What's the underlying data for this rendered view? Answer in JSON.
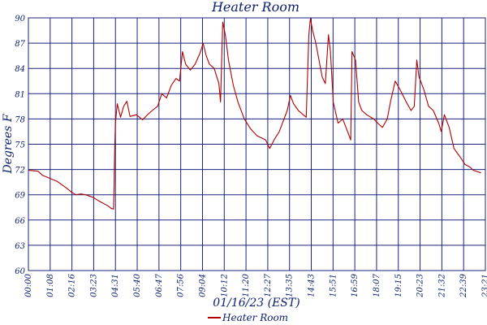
{
  "chart_data": {
    "type": "line",
    "title": "Heater Room",
    "xlabel": "01/16/23 (EST)",
    "ylabel": "Degrees F",
    "ylim": [
      60,
      90
    ],
    "xlim": [
      "00:00",
      "23:59"
    ],
    "grid": true,
    "legend_position": "bottom-center",
    "y_ticks": [
      "60",
      "63",
      "66",
      "69",
      "72",
      "75",
      "78",
      "81",
      "84",
      "87",
      "90"
    ],
    "x_ticks": [
      "00:00",
      "01:08",
      "02:16",
      "03:23",
      "04:31",
      "05:40",
      "06:47",
      "07:56",
      "09:04",
      "10:12",
      "11:20",
      "12:27",
      "13:35",
      "14:43",
      "15:51",
      "16:59",
      "18:07",
      "19:15",
      "20:23",
      "21:32",
      "22:39",
      "23:21"
    ],
    "series": [
      {
        "name": "Heater Room",
        "color": "#b00000",
        "points": [
          [
            "00:00",
            71.9
          ],
          [
            "00:30",
            71.8
          ],
          [
            "00:45",
            71.3
          ],
          [
            "01:30",
            70.6
          ],
          [
            "02:00",
            69.8
          ],
          [
            "02:16",
            69.3
          ],
          [
            "02:30",
            69.0
          ],
          [
            "02:45",
            69.1
          ],
          [
            "03:00",
            69.0
          ],
          [
            "03:23",
            68.7
          ],
          [
            "03:45",
            68.2
          ],
          [
            "04:10",
            67.7
          ],
          [
            "04:20",
            67.4
          ],
          [
            "04:28",
            67.3
          ],
          [
            "04:30",
            70.0
          ],
          [
            "04:31",
            73.0
          ],
          [
            "04:34",
            77.5
          ],
          [
            "04:40",
            79.8
          ],
          [
            "04:50",
            78.2
          ],
          [
            "05:00",
            79.5
          ],
          [
            "05:10",
            80.1
          ],
          [
            "05:20",
            78.3
          ],
          [
            "05:40",
            78.5
          ],
          [
            "06:00",
            77.9
          ],
          [
            "06:15",
            78.5
          ],
          [
            "06:30",
            79.0
          ],
          [
            "06:47",
            79.5
          ],
          [
            "07:00",
            81.0
          ],
          [
            "07:15",
            80.5
          ],
          [
            "07:30",
            82.0
          ],
          [
            "07:45",
            82.8
          ],
          [
            "07:56",
            82.5
          ],
          [
            "08:05",
            86.0
          ],
          [
            "08:15",
            84.5
          ],
          [
            "08:30",
            83.8
          ],
          [
            "08:45",
            84.5
          ],
          [
            "09:00",
            85.8
          ],
          [
            "09:04",
            86.2
          ],
          [
            "09:10",
            87.0
          ],
          [
            "09:20",
            85.5
          ],
          [
            "09:30",
            84.5
          ],
          [
            "09:45",
            84.0
          ],
          [
            "10:00",
            82.2
          ],
          [
            "10:05",
            80.0
          ],
          [
            "10:12",
            89.5
          ],
          [
            "10:20",
            88.0
          ],
          [
            "10:30",
            85.0
          ],
          [
            "10:45",
            82.0
          ],
          [
            "11:00",
            80.0
          ],
          [
            "11:20",
            78.0
          ],
          [
            "11:40",
            76.8
          ],
          [
            "12:00",
            76.0
          ],
          [
            "12:27",
            75.5
          ],
          [
            "12:40",
            74.5
          ],
          [
            "12:55",
            75.6
          ],
          [
            "13:10",
            76.5
          ],
          [
            "13:20",
            77.5
          ],
          [
            "13:35",
            79.0
          ],
          [
            "13:45",
            80.8
          ],
          [
            "13:55",
            79.8
          ],
          [
            "14:10",
            79.0
          ],
          [
            "14:25",
            78.5
          ],
          [
            "14:35",
            78.2
          ],
          [
            "14:43",
            88.0
          ],
          [
            "14:48",
            89.9
          ],
          [
            "14:55",
            88.5
          ],
          [
            "15:05",
            87.0
          ],
          [
            "15:15",
            85.0
          ],
          [
            "15:25",
            83.0
          ],
          [
            "15:35",
            82.2
          ],
          [
            "15:45",
            88.0
          ],
          [
            "15:51",
            86.0
          ],
          [
            "16:00",
            80.0
          ],
          [
            "16:15",
            77.5
          ],
          [
            "16:30",
            78.0
          ],
          [
            "16:45",
            76.5
          ],
          [
            "16:55",
            75.5
          ],
          [
            "16:59",
            86.0
          ],
          [
            "17:10",
            85.0
          ],
          [
            "17:20",
            80.0
          ],
          [
            "17:30",
            79.0
          ],
          [
            "17:45",
            78.5
          ],
          [
            "18:07",
            78.0
          ],
          [
            "18:20",
            77.5
          ],
          [
            "18:35",
            77.0
          ],
          [
            "18:50",
            78.0
          ],
          [
            "19:00",
            80.0
          ],
          [
            "19:15",
            82.5
          ],
          [
            "19:30",
            81.5
          ],
          [
            "19:50",
            80.0
          ],
          [
            "20:05",
            79.0
          ],
          [
            "20:15",
            79.5
          ],
          [
            "20:23",
            85.0
          ],
          [
            "20:30",
            83.0
          ],
          [
            "20:45",
            81.5
          ],
          [
            "21:00",
            79.5
          ],
          [
            "21:15",
            79.0
          ],
          [
            "21:32",
            77.5
          ],
          [
            "21:40",
            76.5
          ],
          [
            "21:50",
            78.5
          ],
          [
            "22:05",
            77.0
          ],
          [
            "22:20",
            74.5
          ],
          [
            "22:39",
            73.5
          ],
          [
            "22:55",
            72.6
          ],
          [
            "23:10",
            72.3
          ],
          [
            "23:21",
            71.9
          ],
          [
            "23:45",
            71.6
          ]
        ]
      }
    ]
  }
}
